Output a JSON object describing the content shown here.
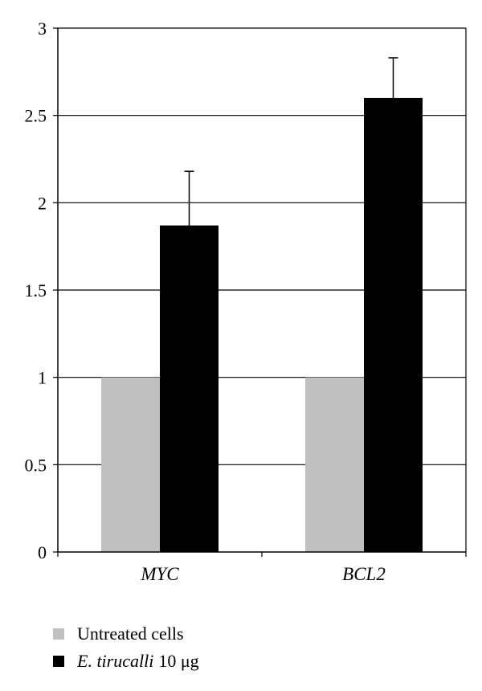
{
  "chart_data": {
    "type": "bar",
    "categories": [
      "MYC",
      "BCL2"
    ],
    "series": [
      {
        "name": "Untreated cells",
        "values": [
          1.0,
          1.0
        ],
        "color": "#c0c0c0"
      },
      {
        "name": "E. tirucalli",
        "values": [
          1.87,
          2.6
        ],
        "errors": [
          0.31,
          0.23
        ],
        "color": "#000000"
      }
    ],
    "legend_suffix": "10 μg",
    "ylim": [
      0,
      3
    ],
    "yticks": [
      "0",
      "0.5",
      "1",
      "1.5",
      "2",
      "2.5",
      "3"
    ],
    "grid": true,
    "legend_position": "bottom-left",
    "title": "",
    "xlabel": "",
    "ylabel": ""
  }
}
